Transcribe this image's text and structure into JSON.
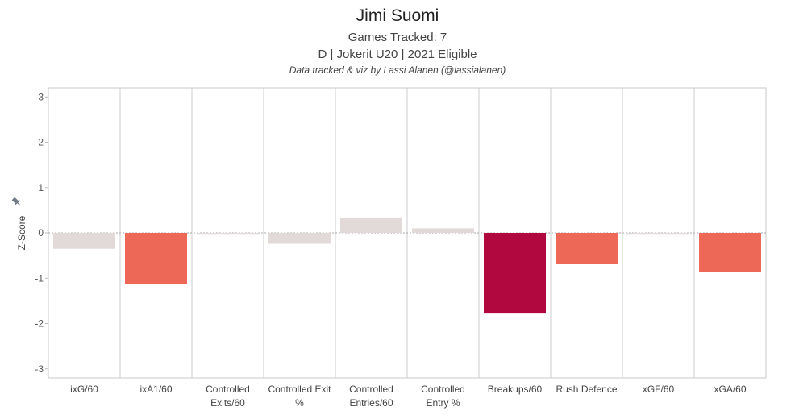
{
  "header": {
    "title": "Jimi Suomi",
    "games_tracked": "Games Tracked: 7",
    "player_info": "D | Jokerit U20 | 2021 Eligible",
    "credit": "Data tracked & viz by Lassi Alanen (@lassialanen)"
  },
  "chart_data": {
    "type": "bar",
    "ylabel": "Z-Score",
    "ylim": [
      -3.2,
      3.2
    ],
    "yticks": [
      -3,
      -2,
      -1,
      0,
      1,
      2,
      3
    ],
    "grid": true,
    "categories": [
      [
        "ixG/60"
      ],
      [
        "ixA1/60"
      ],
      [
        "Controlled",
        "Exits/60"
      ],
      [
        "Controlled Exit",
        "%"
      ],
      [
        "Controlled",
        "Entries/60"
      ],
      [
        "Controlled",
        "Entry %"
      ],
      [
        "Breakups/60"
      ],
      [
        "Rush Defence"
      ],
      [
        "xGF/60"
      ],
      [
        "xGA/60"
      ]
    ],
    "values": [
      -0.35,
      -1.13,
      -0.04,
      -0.24,
      0.34,
      0.1,
      -1.78,
      -0.68,
      -0.04,
      -0.86
    ],
    "colors": [
      "#e2dad8",
      "#ee6858",
      "#e2dad8",
      "#e2dad8",
      "#e2dad8",
      "#e2dad8",
      "#b10840",
      "#ee6858",
      "#e2dad8",
      "#ee6858"
    ]
  }
}
